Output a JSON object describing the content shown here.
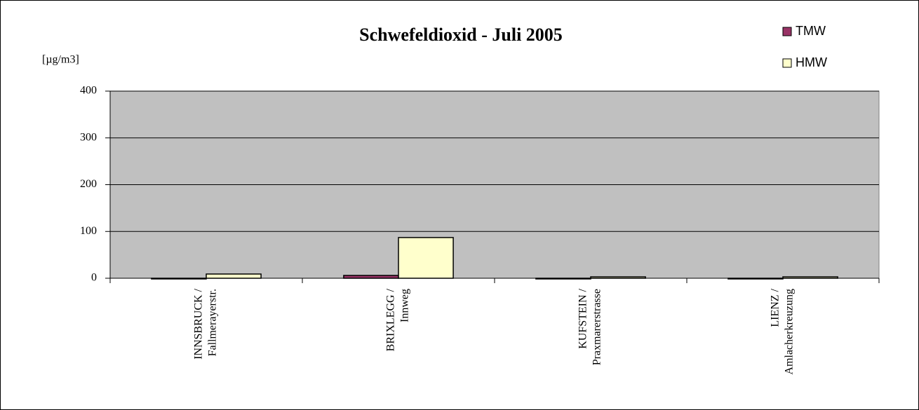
{
  "chart_data": {
    "type": "bar",
    "title": "Schwefeldioxid - Juli 2005",
    "y_label": "[µg/m3]",
    "categories": [
      [
        "INNSBRUCK /",
        "Fallmerayerstr."
      ],
      [
        "BRIXLEGG /",
        "Innweg"
      ],
      [
        "KUFSTEIN /",
        "Praxmarerstrasse"
      ],
      [
        "LIENZ /",
        "Amlacherkreuzung"
      ]
    ],
    "series": [
      {
        "name": "TMW",
        "color": "#993366",
        "values": [
          0,
          6,
          0,
          0
        ]
      },
      {
        "name": "HMW",
        "color": "#ffffcc",
        "values": [
          9,
          87,
          3,
          3
        ]
      }
    ],
    "ylim": [
      0,
      400
    ],
    "yticks": [
      0,
      100,
      200,
      300,
      400
    ],
    "grid": true,
    "legend": "top-right"
  }
}
